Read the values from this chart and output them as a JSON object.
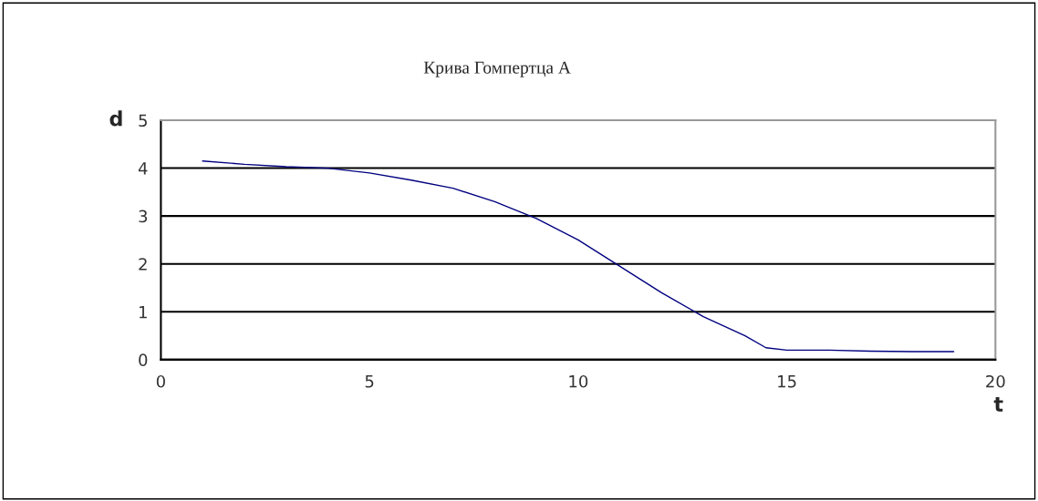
{
  "chart_data": {
    "type": "line",
    "title": "Крива Гомпертца А",
    "xlabel": "t",
    "ylabel": "d",
    "x": [
      1,
      2,
      3,
      4,
      5,
      6,
      7,
      8,
      9,
      10,
      11,
      12,
      13,
      14,
      14.5,
      15,
      16,
      17,
      18,
      19
    ],
    "series": [
      {
        "color": "#000080",
        "values": [
          4.15,
          4.08,
          4.03,
          4.0,
          3.9,
          3.75,
          3.58,
          3.3,
          2.95,
          2.5,
          1.95,
          1.4,
          0.9,
          0.5,
          0.25,
          0.2,
          0.2,
          0.18,
          0.17,
          0.17
        ]
      }
    ],
    "xlim": [
      0,
      20
    ],
    "xticks": [
      0,
      5,
      10,
      15,
      20
    ],
    "ylim": [
      0,
      5
    ],
    "yticks": [
      0,
      1,
      2,
      3,
      4,
      5
    ],
    "grid": "y"
  }
}
